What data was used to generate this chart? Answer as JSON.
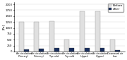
{
  "groups": [
    {
      "label": "Air circulation\n(Primary)",
      "before": 1250,
      "after": 80
    },
    {
      "label": "Air circulation\n(Primary)",
      "before": 1250,
      "after": 120
    },
    {
      "label": "Air circulation\nTop cold",
      "before": 1300,
      "after": 150
    },
    {
      "label": "Air circulation\nTop cold",
      "before": 500,
      "after": 150
    },
    {
      "label": "Air circulation\n(Upper)",
      "before": 1700,
      "after": 150
    },
    {
      "label": "Air circulation\n(Upper)",
      "before": 1700,
      "after": 150
    },
    {
      "label": "Downward air\nflow",
      "before": 500,
      "after": 50
    }
  ],
  "before_color": "#e0e0e0",
  "after_color": "#1a3060",
  "ylabel": "[Pa]",
  "ylim": [
    0,
    2100
  ],
  "yticks": [
    0,
    250,
    500,
    750,
    1000,
    1250,
    1500,
    1750,
    2000
  ],
  "legend_before": "Before",
  "legend_after": "after",
  "bar_width": 0.32,
  "tick_fontsize": 2.8,
  "label_fontsize": 2.3,
  "legend_fontsize": 3.2,
  "ylabel_fontsize": 3.0
}
